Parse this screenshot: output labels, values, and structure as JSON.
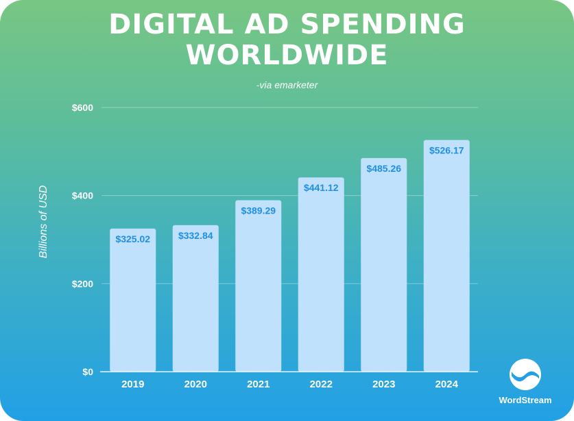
{
  "title_lines": [
    "DIGITAL AD SPENDING",
    "WORLDWIDE"
  ],
  "subtitle": "-via emarketer",
  "colors": {
    "bar": "#bfe1fb",
    "bar_label": "#1f8fe6",
    "gradient_top": "#78c683",
    "gradient_bottom": "#22a0e6"
  },
  "logo": {
    "name": "WordStream",
    "icon": "wordstream-logo-icon"
  },
  "chart_data": {
    "type": "bar",
    "title": "DIGITAL AD SPENDING WORLDWIDE",
    "subtitle": "-via emarketer",
    "categories": [
      "2019",
      "2020",
      "2021",
      "2022",
      "2023",
      "2024"
    ],
    "values": [
      325.02,
      332.84,
      389.29,
      441.12,
      485.26,
      526.17
    ],
    "value_labels": [
      "$325.02",
      "$332.84",
      "$389.29",
      "$441.12",
      "$485.26",
      "$526.17"
    ],
    "xlabel": "",
    "ylabel": "Billions of USD",
    "ylim": [
      0,
      600
    ],
    "yticks": [
      0,
      200,
      400,
      600
    ],
    "ytick_labels": [
      "$0",
      "$200",
      "$400",
      "$600"
    ],
    "grid": true,
    "legend": "none"
  }
}
